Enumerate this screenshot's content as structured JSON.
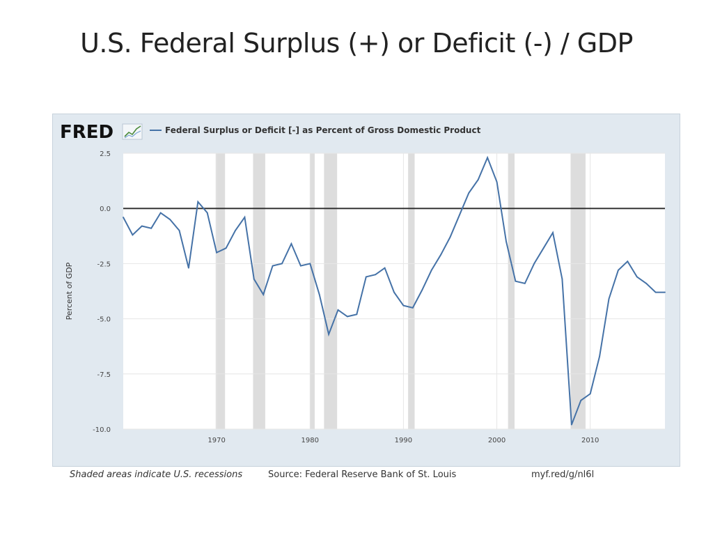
{
  "slide": {
    "title": "U.S. Federal Surplus (+) or Deficit (-) / GDP"
  },
  "fred": {
    "logo_text": "FRED",
    "legend_label": "Federal Surplus or Deficit [-] as Percent of Gross Domestic Product",
    "line_color": "#4572a7",
    "recession_color": "#dddddd",
    "zero_line_color": "#333333"
  },
  "footer": {
    "recession_note": "Shaded areas indicate U.S. recessions",
    "source": "Source: Federal Reserve Bank of St. Louis",
    "url": "myf.red/g/nl6l"
  },
  "chart_data": {
    "type": "line",
    "title": "Federal Surplus or Deficit [-] as Percent of Gross Domestic Product",
    "xlabel": "",
    "ylabel": "Percent of GDP",
    "xlim": [
      1960,
      2018
    ],
    "ylim": [
      -10.0,
      2.5
    ],
    "yticks": [
      2.5,
      0.0,
      -2.5,
      -5.0,
      -7.5,
      -10.0
    ],
    "ytick_labels": [
      "2.5",
      "0.0",
      "-2.5",
      "-5.0",
      "-7.5",
      "-10.0"
    ],
    "xticks": [
      1970,
      1980,
      1990,
      2000,
      2010
    ],
    "xtick_labels": [
      "1970",
      "1980",
      "1990",
      "2000",
      "2010"
    ],
    "grid": true,
    "zero_line": 0,
    "recessions": [
      [
        1969.9,
        1970.9
      ],
      [
        1973.9,
        1975.2
      ],
      [
        1980.0,
        1980.5
      ],
      [
        1981.5,
        1982.9
      ],
      [
        1990.5,
        1991.2
      ],
      [
        2001.2,
        2001.9
      ],
      [
        2007.9,
        2009.5
      ]
    ],
    "series": [
      {
        "name": "Federal Surplus or Deficit [-] as Percent of Gross Domestic Product",
        "x": [
          1960,
          1961,
          1962,
          1963,
          1964,
          1965,
          1966,
          1967,
          1968,
          1969,
          1970,
          1971,
          1972,
          1973,
          1974,
          1975,
          1976,
          1977,
          1978,
          1979,
          1980,
          1981,
          1982,
          1983,
          1984,
          1985,
          1986,
          1987,
          1988,
          1989,
          1990,
          1991,
          1992,
          1993,
          1994,
          1995,
          1996,
          1997,
          1998,
          1999,
          2000,
          2001,
          2002,
          2003,
          2004,
          2005,
          2006,
          2007,
          2008,
          2009,
          2010,
          2011,
          2012,
          2013,
          2014,
          2015,
          2016,
          2017,
          2018
        ],
        "values": [
          -0.4,
          -1.2,
          -0.8,
          -0.9,
          -0.2,
          -0.5,
          -1.0,
          -2.7,
          0.3,
          -0.2,
          -2.0,
          -1.8,
          -1.0,
          -0.4,
          -3.2,
          -3.9,
          -2.6,
          -2.5,
          -1.6,
          -2.6,
          -2.5,
          -3.9,
          -5.7,
          -4.6,
          -4.9,
          -4.8,
          -3.1,
          -3.0,
          -2.7,
          -3.8,
          -4.4,
          -4.5,
          -3.7,
          -2.8,
          -2.1,
          -1.3,
          -0.3,
          0.7,
          1.3,
          2.3,
          1.2,
          -1.5,
          -3.3,
          -3.4,
          -2.5,
          -1.8,
          -1.1,
          -3.2,
          -9.8,
          -8.7,
          -8.4,
          -6.7,
          -4.1,
          -2.8,
          -2.4,
          -3.1,
          -3.4,
          -3.8,
          -3.8
        ]
      }
    ]
  }
}
